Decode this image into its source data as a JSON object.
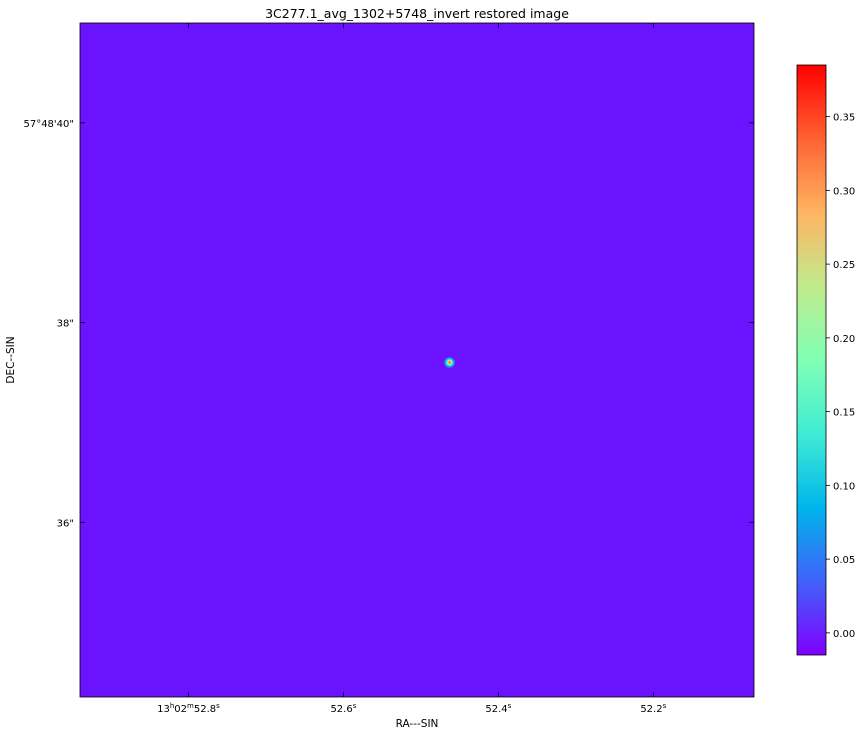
{
  "figure": {
    "title": "3C277.1_avg_1302+5748_invert restored image",
    "xlabel": "RA---SIN",
    "ylabel": "DEC--SIN",
    "background_color": "#6b13ff",
    "source": {
      "ra_s": 52.463,
      "dec_arcsec": 37.6
    }
  },
  "axes": {
    "x_range_s": [
      52.94,
      52.07
    ],
    "y_range_arcsec": [
      34.25,
      41.0
    ],
    "x_ticks": [
      {
        "value": 52.8,
        "h": "13",
        "m": "02",
        "s": "52.8",
        "first": true
      },
      {
        "value": 52.6,
        "s": "52.6",
        "first": false
      },
      {
        "value": 52.4,
        "s": "52.4",
        "first": false
      },
      {
        "value": 52.2,
        "s": "52.2",
        "first": false
      }
    ],
    "y_ticks": [
      {
        "value": 40,
        "label": "57°48'40\""
      },
      {
        "value": 38,
        "label": "38\""
      },
      {
        "value": 36,
        "label": "36\""
      }
    ]
  },
  "colorbar": {
    "range": [
      -0.015,
      0.385
    ],
    "ticks": [
      {
        "value": 0.0,
        "label": "0.00"
      },
      {
        "value": 0.05,
        "label": "0.05"
      },
      {
        "value": 0.1,
        "label": "0.10"
      },
      {
        "value": 0.15,
        "label": "0.15"
      },
      {
        "value": 0.2,
        "label": "0.20"
      },
      {
        "value": 0.25,
        "label": "0.25"
      },
      {
        "value": 0.3,
        "label": "0.30"
      },
      {
        "value": 0.35,
        "label": "0.35"
      }
    ],
    "colormap": "rainbow",
    "stops": [
      "#8000ff",
      "#4062fa",
      "#00b5eb",
      "#40ecd4",
      "#80ffb4",
      "#c0eb8d",
      "#ffb462",
      "#ff6232",
      "#ff0000"
    ]
  }
}
